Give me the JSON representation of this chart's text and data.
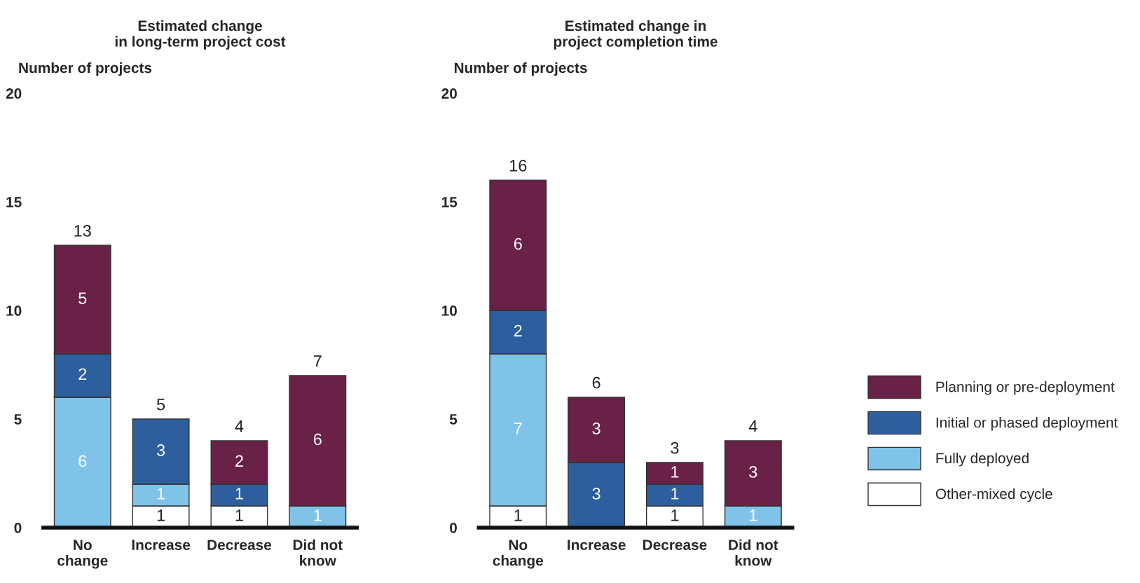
{
  "chart_data": [
    {
      "type": "bar",
      "title": "Estimated change\nin long-term project cost",
      "ylabel": "Number of projects",
      "categories": [
        "No\nchange",
        "Increase",
        "Decrease",
        "Did not\nknow"
      ],
      "stacked": true,
      "ylim": [
        0,
        20
      ],
      "yticks": [
        0,
        5,
        10,
        15,
        20
      ],
      "grid": false,
      "series": [
        {
          "color": "#ffffff",
          "values": [
            0,
            1,
            1,
            0
          ],
          "value_labels": [
            null,
            "1",
            "1",
            null
          ]
        },
        {
          "color": "#7fc3e8",
          "values": [
            6,
            1,
            0,
            1
          ],
          "value_labels": [
            "6",
            "1",
            null,
            "1"
          ]
        },
        {
          "color": "#2d5f9e",
          "values": [
            2,
            3,
            1,
            0
          ],
          "value_labels": [
            "2",
            "3",
            "1",
            null
          ]
        },
        {
          "color": "#6a2148",
          "values": [
            5,
            0,
            2,
            6
          ],
          "value_labels": [
            "5",
            null,
            "2",
            "6"
          ]
        }
      ],
      "totals": [
        "13",
        "5",
        "4",
        "7"
      ]
    },
    {
      "type": "bar",
      "title": "Estimated change in\nproject completion time",
      "ylabel": "Number of projects",
      "categories": [
        "No\nchange",
        "Increase",
        "Decrease",
        "Did not\nknow"
      ],
      "stacked": true,
      "ylim": [
        0,
        20
      ],
      "yticks": [
        0,
        5,
        10,
        15,
        20
      ],
      "grid": false,
      "legend": "right",
      "series": [
        {
          "name": "Other-mixed cycle",
          "color": "#ffffff",
          "values": [
            1,
            0,
            1,
            0
          ],
          "value_labels": [
            "1",
            null,
            "1",
            null
          ]
        },
        {
          "name": "Fully deployed",
          "color": "#7fc3e8",
          "values": [
            7,
            0,
            0,
            1
          ],
          "value_labels": [
            "7",
            null,
            null,
            "1"
          ]
        },
        {
          "name": "Initial or phased deployment",
          "color": "#2d5f9e",
          "values": [
            2,
            3,
            1,
            0
          ],
          "value_labels": [
            "2",
            "3",
            "1",
            null
          ]
        },
        {
          "name": "Planning or pre-deployment",
          "color": "#6a2148",
          "values": [
            6,
            3,
            1,
            3
          ],
          "value_labels": [
            "6",
            "3",
            "1",
            "3"
          ]
        }
      ],
      "totals": [
        "16",
        "6",
        "3",
        "4"
      ]
    }
  ]
}
